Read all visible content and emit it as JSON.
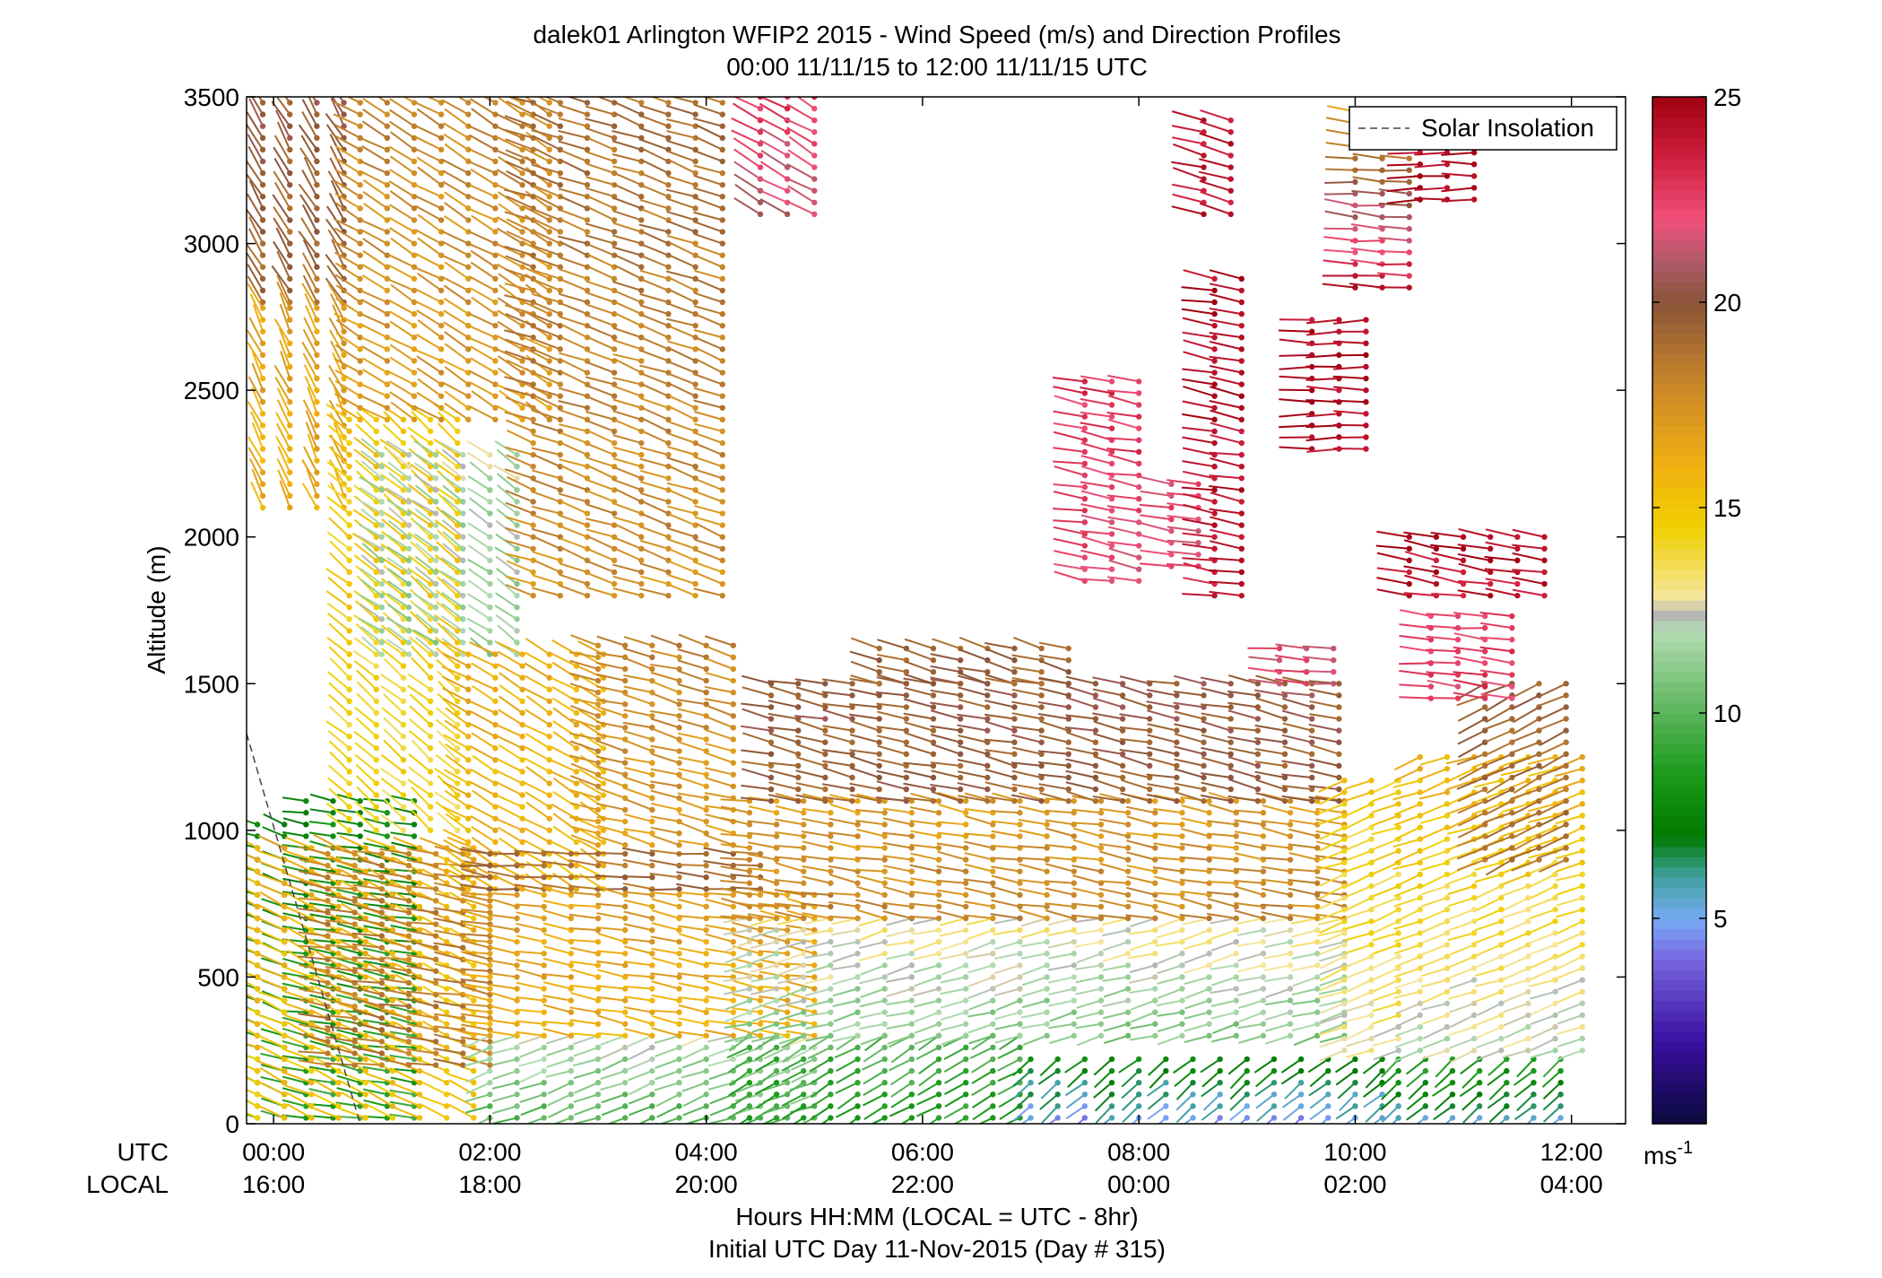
{
  "chart_data": {
    "type": "wind barb profile",
    "title": "dalek01 Arlington WFIP2 2015 - Wind Speed (m/s) and Direction Profiles",
    "subtitle": "00:00 11/11/15 to 12:00 11/11/15  UTC",
    "ylabel": "Altitude (m)",
    "xlabel": "Hours HH:MM  (LOCAL = UTC - 8hr)",
    "xlabel2": "Initial UTC Day 11-Nov-2015 (Day # 315)",
    "utc_row_label": "UTC",
    "local_row_label": "LOCAL",
    "ylim": [
      0,
      3500
    ],
    "yticks": [
      "0",
      "500",
      "1000",
      "1500",
      "2000",
      "2500",
      "3000",
      "3500"
    ],
    "xlim_hours": [
      -0.25,
      12.5
    ],
    "xticks_utc": [
      "00:00",
      "02:00",
      "04:00",
      "06:00",
      "08:00",
      "10:00",
      "12:00"
    ],
    "xticks_local": [
      "16:00",
      "18:00",
      "20:00",
      "22:00",
      "00:00",
      "02:00",
      "04:00"
    ],
    "legend": {
      "label": "Solar Insolation",
      "position": "top-right"
    },
    "colorbar": {
      "range": [
        0,
        25
      ],
      "ticks": [
        "5",
        "10",
        "15",
        "20",
        "25"
      ],
      "unit": "ms",
      "unit_exp": "-1",
      "stops": [
        {
          "v": 0,
          "c": "#0a0a3c"
        },
        {
          "v": 2,
          "c": "#3a0fa0"
        },
        {
          "v": 4,
          "c": "#7766e0"
        },
        {
          "v": 5,
          "c": "#77aaf5"
        },
        {
          "v": 6,
          "c": "#40a0a0"
        },
        {
          "v": 7,
          "c": "#007a00"
        },
        {
          "v": 8.5,
          "c": "#1a9a1a"
        },
        {
          "v": 10,
          "c": "#5ab45a"
        },
        {
          "v": 12,
          "c": "#b4dcb4"
        },
        {
          "v": 12.4,
          "c": "#b4b4b4"
        },
        {
          "v": 12.8,
          "c": "#f5e6a0"
        },
        {
          "v": 14.5,
          "c": "#f0d000"
        },
        {
          "v": 16,
          "c": "#f0b010"
        },
        {
          "v": 18,
          "c": "#c8862a"
        },
        {
          "v": 20,
          "c": "#8a5438"
        },
        {
          "v": 21,
          "c": "#b05a6a"
        },
        {
          "v": 22,
          "c": "#f0507a"
        },
        {
          "v": 23.5,
          "c": "#d02040"
        },
        {
          "v": 25,
          "c": "#a00010"
        }
      ]
    },
    "solar_insolation_line": [
      {
        "hour": -0.25,
        "alt": 1330
      },
      {
        "hour": 0.8,
        "alt": 0
      }
    ],
    "wind_regions": [
      {
        "t0": -0.15,
        "t1": 0.3,
        "z0": 20,
        "z1": 1040,
        "speed": [
          9,
          7.5
        ],
        "dir": 290
      },
      {
        "t0": 0.3,
        "t1": 1.3,
        "z0": 20,
        "z1": 1100,
        "speed": [
          9,
          7.5
        ],
        "dir": 280
      },
      {
        "t0": -0.15,
        "t1": 2.0,
        "z0": 20,
        "z1": 960,
        "speed": [
          15,
          16
        ],
        "dir": 295
      },
      {
        "t0": 0.5,
        "t1": 2.0,
        "z0": 200,
        "z1": 950,
        "speed": [
          18.5,
          18
        ],
        "dir": 280
      },
      {
        "t0": -0.1,
        "t1": 0.7,
        "z0": 2800,
        "z1": 3500,
        "speed": [
          19,
          20
        ],
        "dir": 330
      },
      {
        "t0": -0.1,
        "t1": 0.7,
        "z0": 2100,
        "z1": 2800,
        "speed": [
          16,
          17
        ],
        "dir": 335
      },
      {
        "t0": 0.7,
        "t1": 1.7,
        "z0": 1000,
        "z1": 2400,
        "speed": [
          14,
          15
        ],
        "dir": 310
      },
      {
        "t0": 1.0,
        "t1": 2.4,
        "z0": 1600,
        "z1": 2300,
        "speed": [
          11.5,
          12
        ],
        "dir": 305
      },
      {
        "t0": 0.8,
        "t1": 2.6,
        "z0": 2400,
        "z1": 3500,
        "speed": [
          17,
          18
        ],
        "dir": 300
      },
      {
        "t0": 1.8,
        "t1": 3.2,
        "z0": 800,
        "z1": 1600,
        "speed": [
          15.5,
          16
        ],
        "dir": 300
      },
      {
        "t0": 2.0,
        "t1": 4.6,
        "z0": 800,
        "z1": 950,
        "speed": [
          19,
          19
        ],
        "dir": 275
      },
      {
        "t0": 2.0,
        "t1": 5.0,
        "z0": 20,
        "z1": 300,
        "speed": [
          10,
          12
        ],
        "dir": 250
      },
      {
        "t0": 2.0,
        "t1": 5.0,
        "z0": 300,
        "z1": 800,
        "speed": [
          16,
          17
        ],
        "dir": 280
      },
      {
        "t0": 3.0,
        "t1": 4.4,
        "z0": 950,
        "z1": 1650,
        "speed": [
          17,
          18
        ],
        "dir": 285
      },
      {
        "t0": 2.4,
        "t1": 4.2,
        "z0": 1800,
        "z1": 3500,
        "speed": [
          17.5,
          19
        ],
        "dir": 290
      },
      {
        "t0": 4.5,
        "t1": 5.2,
        "z0": 3100,
        "z1": 3500,
        "speed": [
          21,
          23
        ],
        "dir": 300
      },
      {
        "t0": 4.4,
        "t1": 7.0,
        "z0": 20,
        "z1": 300,
        "speed": [
          8.5,
          10
        ],
        "dir": 240
      },
      {
        "t0": 4.4,
        "t1": 9.9,
        "z0": 300,
        "z1": 700,
        "speed": [
          11,
          13
        ],
        "dir": 255
      },
      {
        "t0": 4.4,
        "t1": 9.9,
        "z0": 700,
        "z1": 1100,
        "speed": [
          18,
          17
        ],
        "dir": 280
      },
      {
        "t0": 4.6,
        "t1": 9.9,
        "z0": 1100,
        "z1": 1500,
        "speed": [
          19.5,
          20
        ],
        "dir": 282
      },
      {
        "t0": 5.6,
        "t1": 7.4,
        "z0": 1500,
        "z1": 1650,
        "speed": [
          19.5,
          19.5
        ],
        "dir": 285
      },
      {
        "t0": 7.0,
        "t1": 10.4,
        "z0": 20,
        "z1": 250,
        "speed": [
          5,
          8
        ],
        "dir": 230
      },
      {
        "t0": 7.5,
        "t1": 8.0,
        "z0": 1850,
        "z1": 2550,
        "speed": [
          22,
          23
        ],
        "dir": 280
      },
      {
        "t0": 8.3,
        "t1": 8.7,
        "z0": 1900,
        "z1": 2200,
        "speed": [
          22,
          22
        ],
        "dir": 280
      },
      {
        "t0": 8.7,
        "t1": 9.0,
        "z0": 1800,
        "z1": 2900,
        "speed": [
          24,
          24.5
        ],
        "dir": 280
      },
      {
        "t0": 8.6,
        "t1": 9.0,
        "z0": 3100,
        "z1": 3450,
        "speed": [
          24,
          24
        ],
        "dir": 285
      },
      {
        "t0": 9.3,
        "t1": 9.9,
        "z0": 1500,
        "z1": 1650,
        "speed": [
          22,
          22
        ],
        "dir": 275
      },
      {
        "t0": 9.6,
        "t1": 10.2,
        "z0": 2300,
        "z1": 2750,
        "speed": [
          24.5,
          24.5
        ],
        "dir": 270
      },
      {
        "t0": 9.9,
        "t1": 10.6,
        "z0": 250,
        "z1": 1200,
        "speed": [
          13,
          15
        ],
        "dir": 250
      },
      {
        "t0": 10.0,
        "t1": 10.6,
        "z0": 2850,
        "z1": 3450,
        "speed": [
          24,
          17
        ],
        "dir": 275
      },
      {
        "t0": 10.6,
        "t1": 11.3,
        "z0": 3150,
        "z1": 3450,
        "speed": [
          24.5,
          24.5
        ],
        "dir": 270
      },
      {
        "t0": 10.4,
        "t1": 12.1,
        "z0": 20,
        "z1": 250,
        "speed": [
          6,
          9
        ],
        "dir": 230
      },
      {
        "t0": 10.6,
        "t1": 12.1,
        "z0": 250,
        "z1": 1250,
        "speed": [
          12,
          16
        ],
        "dir": 250
      },
      {
        "t0": 11.2,
        "t1": 12.1,
        "z0": 900,
        "z1": 1500,
        "speed": [
          18.5,
          19.5
        ],
        "dir": 245
      },
      {
        "t0": 10.7,
        "t1": 11.6,
        "z0": 1450,
        "z1": 1750,
        "speed": [
          22.5,
          22.5
        ],
        "dir": 275
      },
      {
        "t0": 10.5,
        "t1": 11.8,
        "z0": 1800,
        "z1": 2000,
        "speed": [
          24,
          24.5
        ],
        "dir": 280
      }
    ]
  }
}
